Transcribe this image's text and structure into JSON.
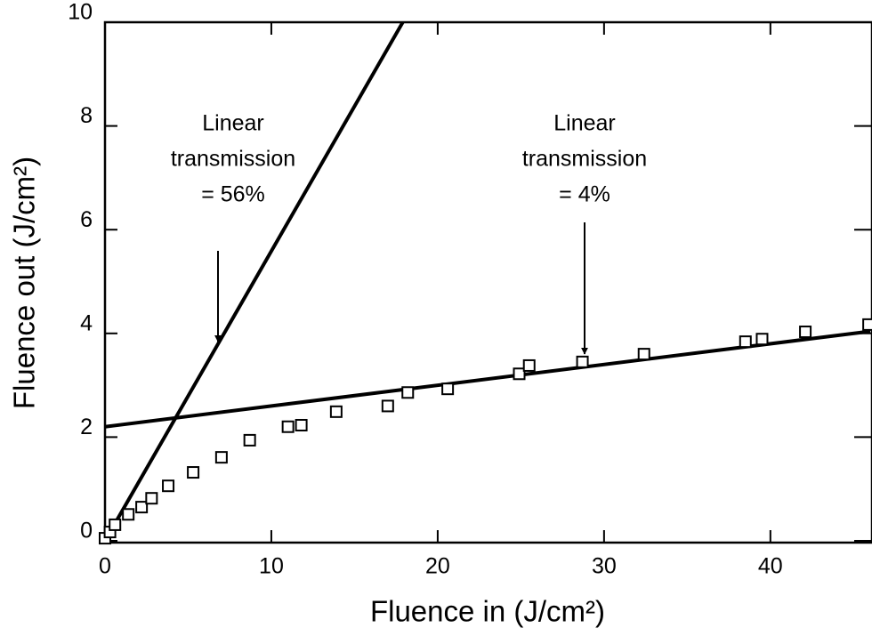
{
  "chart_data": {
    "type": "scatter",
    "xlabel": "Fluence in (J/cm²)",
    "ylabel": "Fluence out (J/cm²)",
    "xlim": [
      0,
      46
    ],
    "ylim": [
      0,
      10
    ],
    "xticks": [
      0,
      10,
      20,
      30,
      40
    ],
    "yticks": [
      0,
      2,
      4,
      6,
      8,
      10
    ],
    "color": "#000000",
    "points": {
      "x": [
        0,
        0.3,
        0.6,
        1.4,
        2.2,
        2.8,
        3.8,
        5.3,
        7.0,
        8.7,
        11.0,
        11.8,
        13.9,
        17.0,
        18.2,
        20.6,
        24.9,
        25.5,
        28.7,
        32.4,
        38.5,
        39.5,
        42.1,
        45.9
      ],
      "y": [
        0.05,
        0.17,
        0.31,
        0.51,
        0.65,
        0.82,
        1.06,
        1.32,
        1.61,
        1.94,
        2.2,
        2.23,
        2.49,
        2.6,
        2.86,
        2.93,
        3.22,
        3.38,
        3.45,
        3.6,
        3.84,
        3.89,
        4.03,
        4.17
      ]
    },
    "lines": [
      {
        "x": [
          0,
          17.9
        ],
        "y": [
          0,
          10
        ]
      },
      {
        "x": [
          0,
          46
        ],
        "y": [
          2.2,
          4.04
        ]
      }
    ],
    "annotations": [
      {
        "lines": [
          "Linear",
          "transmission",
          "= 56%"
        ]
      },
      {
        "lines": [
          "Linear",
          "transmission",
          "= 4%"
        ]
      }
    ]
  }
}
